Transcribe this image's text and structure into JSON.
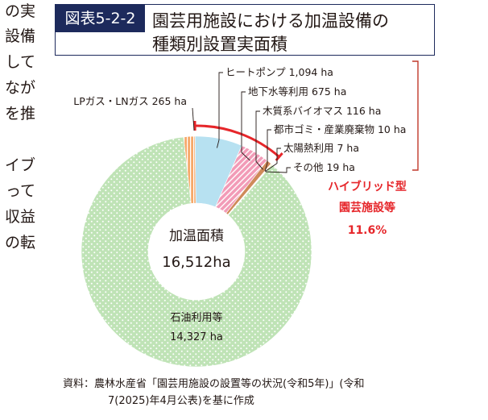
{
  "body_text_fragments": [
    "の実",
    "設備",
    "して",
    "なが",
    "を推",
    "",
    "イブ",
    "って",
    "収益",
    "の転"
  ],
  "figure": {
    "label": "図表5-2-2",
    "title_line1": "園芸用施設における加温設備の",
    "title_line2": "種類別設置実面積"
  },
  "chart_data": {
    "type": "pie",
    "style": "donut",
    "title": "図表5-2-2 園芸用施設における加温設備の種類別設置実面積",
    "center_label": "加温面積",
    "center_value": "16,512ha",
    "total": 16512,
    "unit": "ha",
    "slices": [
      {
        "name": "LPガス・LNガス",
        "value": 265,
        "label": "LPガス・LNガス 265 ha",
        "color": "#f6a86a",
        "pattern": "stripe-vertical"
      },
      {
        "name": "ヒートポンプ",
        "value": 1094,
        "label": "ヒートポンプ 1,094 ha",
        "color": "#b7e1f1",
        "pattern": "solid"
      },
      {
        "name": "地下水等利用",
        "value": 675,
        "label": "地下水等利用 675 ha",
        "color": "#f29bb7",
        "pattern": "stripe-diagonal"
      },
      {
        "name": "木質系バイオマス",
        "value": 116,
        "label": "木質系バイオマス 116 ha",
        "color": "#cf8a5a",
        "pattern": "solid"
      },
      {
        "name": "都市ゴミ・産業廃棄物",
        "value": 10,
        "label": "都市ゴミ・産業廃棄物 10 ha",
        "color": "#9a9a9a",
        "pattern": "solid"
      },
      {
        "name": "太陽熱利用",
        "value": 7,
        "label": "太陽熱利用 7 ha",
        "color": "#e8c23a",
        "pattern": "solid"
      },
      {
        "name": "その他",
        "value": 19,
        "label": "その他 19 ha",
        "color": "#f5d24b",
        "pattern": "stripe-diagonal"
      },
      {
        "name": "石油利用等",
        "value": 14327,
        "label_line1": "石油利用等",
        "label_line2": "14,327 ha",
        "color": "#bfe3b6",
        "pattern": "dots"
      }
    ],
    "annotation": {
      "line1": "ハイブリッド型",
      "line2": "園芸施設等",
      "line3": "11.6%",
      "color": "#e6262a"
    },
    "colors": {
      "bracket": "#e6262a",
      "guide_bracket": "#c0392b",
      "leader": "#231815"
    }
  },
  "source": {
    "line1": "資料：農林水産省「園芸用施設の設置等の状況(令和5年)」(令和",
    "line2": "7(2025)年4月公表)を基に作成"
  }
}
